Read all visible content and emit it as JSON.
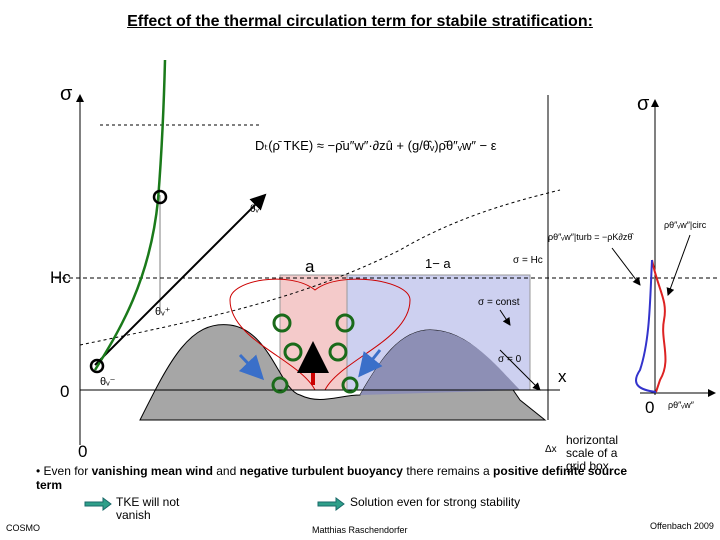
{
  "title": "Effect of the thermal circulation term for stabile stratification:",
  "diagram": {
    "equation": "Dₜ(ρ̄ TKE) ≈ −ρ̄u″w″·∂ᴢû + (g/θ̂ᵥ)ρ̄θ″ᵥw″ − ε",
    "left_axis_label": "σ",
    "right_axis_label": "σ",
    "hc_label": "Hc",
    "left_zero": "0",
    "bottom_zero": "0",
    "right_zero": "0",
    "x_label": "x",
    "dx_label": "Δx",
    "theta_hat": "θ̂ᵥ",
    "theta_plus": "θᵥ⁺",
    "theta_minus": "θᵥ⁻",
    "a_label": "a",
    "one_minus_a": "1− a",
    "sigma_hc": "σ = Hc",
    "sigma_const": "σ = const",
    "sigma_zero": "σ = 0",
    "circ_flux": "ρθ″ᵥw″|circ",
    "turb_flux": "ρθ″ᵥw″|turb = −ρK∂ᴢθ̂",
    "right_x_label": "ρθ″ᵥw″",
    "grid_scale": "horizontal scale of a grid box"
  },
  "bullet": [
    "•  Even for ",
    "vanishing mean wind",
    " and ",
    "negative turbulent buoyancy",
    " there remains a ",
    "positive definite source term"
  ],
  "arrow_notes": [
    "TKE will not vanish",
    "Solution even for strong stability"
  ],
  "footer": {
    "left": "COSMO",
    "center": "Matthias Raschendorfer",
    "right": "Offenbach 2009"
  }
}
